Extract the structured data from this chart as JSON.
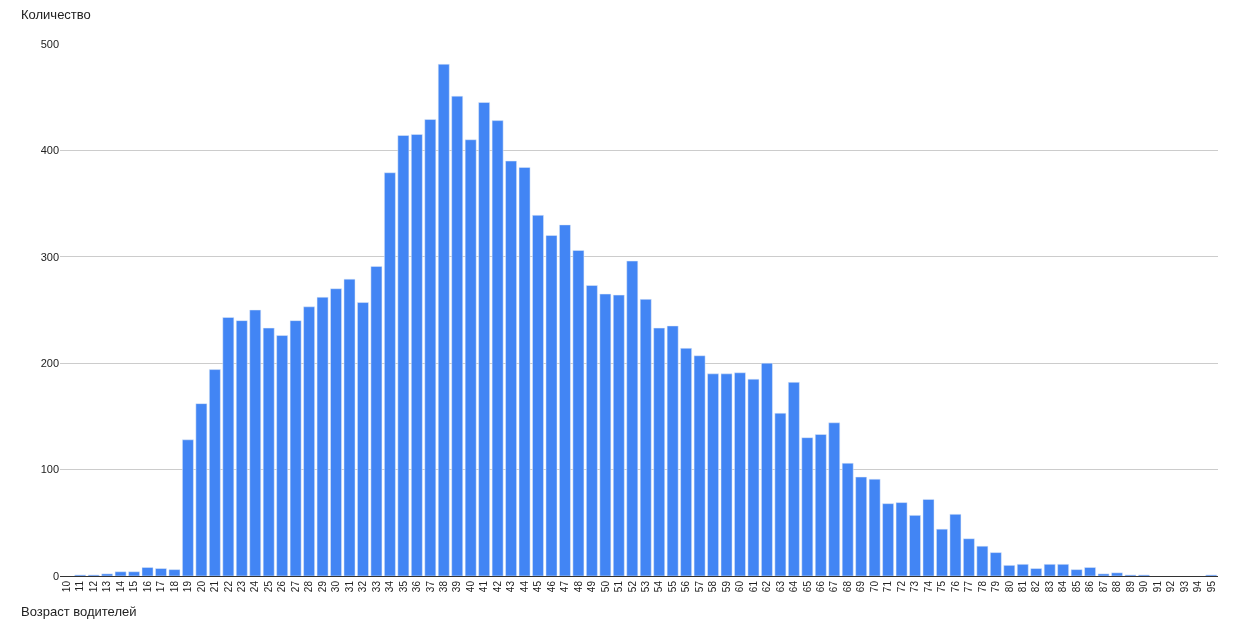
{
  "chart_data": {
    "type": "bar",
    "xlabel": "Возраст водителей",
    "ylabel": "Количество",
    "categories": [
      "10",
      "11",
      "12",
      "13",
      "14",
      "15",
      "16",
      "17",
      "18",
      "19",
      "20",
      "21",
      "22",
      "23",
      "24",
      "25",
      "26",
      "27",
      "28",
      "29",
      "30",
      "31",
      "32",
      "33",
      "34",
      "35",
      "36",
      "37",
      "38",
      "39",
      "40",
      "41",
      "42",
      "43",
      "44",
      "45",
      "46",
      "47",
      "48",
      "49",
      "50",
      "51",
      "52",
      "53",
      "54",
      "55",
      "56",
      "57",
      "58",
      "59",
      "60",
      "61",
      "62",
      "63",
      "64",
      "65",
      "66",
      "67",
      "68",
      "69",
      "70",
      "71",
      "72",
      "73",
      "74",
      "75",
      "76",
      "77",
      "78",
      "79",
      "80",
      "81",
      "82",
      "83",
      "84",
      "85",
      "86",
      "87",
      "88",
      "89",
      "90",
      "91",
      "92",
      "93",
      "94",
      "95"
    ],
    "values": [
      null,
      1,
      1,
      2,
      4,
      4,
      8,
      7,
      6,
      128,
      162,
      194,
      243,
      240,
      250,
      233,
      226,
      240,
      253,
      262,
      270,
      279,
      257,
      291,
      379,
      414,
      415,
      429,
      481,
      451,
      410,
      445,
      428,
      390,
      384,
      339,
      320,
      330,
      306,
      273,
      265,
      264,
      296,
      260,
      233,
      235,
      214,
      207,
      190,
      190,
      191,
      185,
      200,
      153,
      182,
      130,
      133,
      144,
      106,
      93,
      91,
      68,
      69,
      57,
      72,
      44,
      58,
      35,
      28,
      22,
      10,
      11,
      7,
      11,
      11,
      6,
      8,
      2,
      3,
      1,
      1,
      null,
      null,
      null,
      null,
      1
    ],
    "color": "#4285f4",
    "ylim": [
      0,
      500
    ],
    "yticks": [
      0,
      100,
      200,
      300,
      400,
      500
    ],
    "grid": "y"
  }
}
